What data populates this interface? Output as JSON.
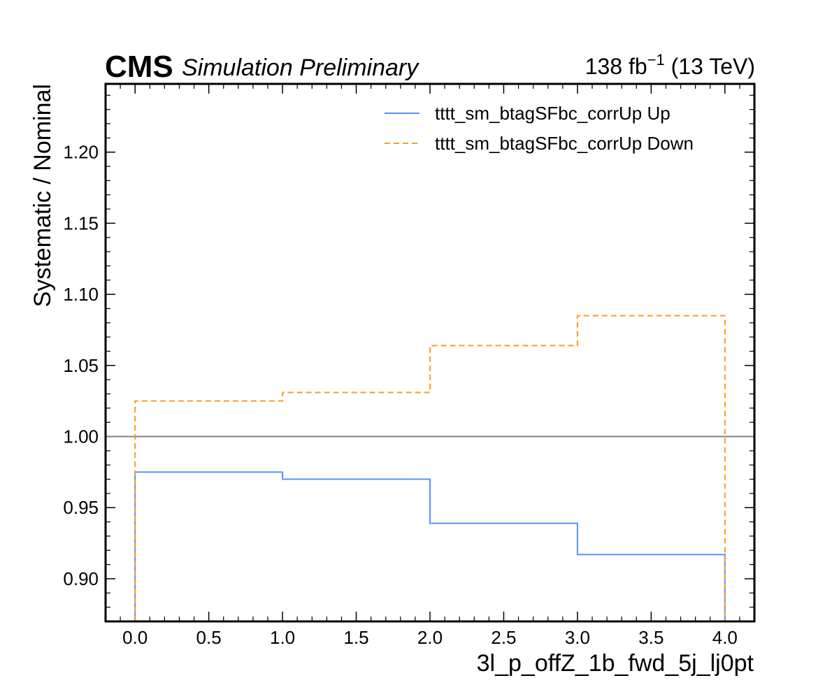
{
  "header": {
    "experiment": "CMS",
    "status": "Simulation Preliminary",
    "lumi_value": "138 fb",
    "lumi_exponent": "−1",
    "lumi_energy": "(13 TeV)"
  },
  "chart_data": {
    "type": "line",
    "drawstyle": "steps",
    "xlabel": "3l_p_offZ_1b_fwd_5j_lj0pt",
    "ylabel": "Systematic / Nominal",
    "xlim": [
      -0.2,
      4.2
    ],
    "ylim": [
      0.87,
      1.248
    ],
    "x_ticks": [
      0.0,
      0.5,
      1.0,
      1.5,
      2.0,
      2.5,
      3.0,
      3.5,
      4.0
    ],
    "x_tick_labels": [
      "0.0",
      "0.5",
      "1.0",
      "1.5",
      "2.0",
      "2.5",
      "3.0",
      "3.5",
      "4.0"
    ],
    "y_ticks": [
      0.9,
      0.95,
      1.0,
      1.05,
      1.1,
      1.15,
      1.2
    ],
    "y_tick_labels": [
      "0.90",
      "0.95",
      "1.00",
      "1.05",
      "1.10",
      "1.15",
      "1.20"
    ],
    "bin_edges": [
      0,
      1,
      2,
      3,
      4
    ],
    "reference_line": 1.0,
    "grid": false,
    "legend_position": "top-right",
    "series": [
      {
        "name": "tttt_sm_btagSFbc_corrUp Up",
        "values": [
          0.975,
          0.97,
          0.939,
          0.917
        ],
        "color": "#5790fc",
        "style": "solid"
      },
      {
        "name": "tttt_sm_btagSFbc_corrUp Down",
        "values": [
          1.025,
          1.031,
          1.064,
          1.085
        ],
        "color": "#f89c20",
        "style": "dashed"
      }
    ],
    "reference_color": "#808080"
  }
}
